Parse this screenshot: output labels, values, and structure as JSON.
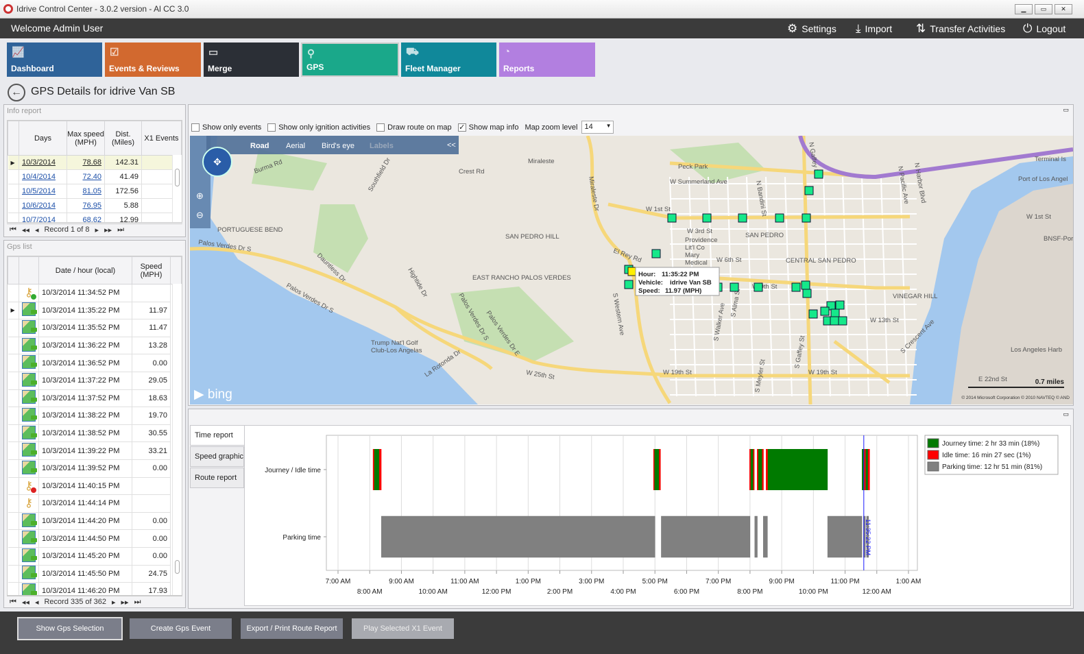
{
  "window": {
    "title": "Idrive Control Center - 3.0.2 version - Al CC 3.0",
    "min": "▁",
    "max": "▭",
    "close": "✕"
  },
  "header": {
    "welcome": "Welcome Admin User",
    "menu": [
      {
        "label": "Settings",
        "icon": "gears-icon"
      },
      {
        "label": "Import",
        "icon": "download-icon"
      },
      {
        "label": "Transfer Activities",
        "icon": "transfer-icon"
      },
      {
        "label": "Logout",
        "icon": "power-icon"
      }
    ]
  },
  "tiles": [
    {
      "label": "Dashboard",
      "color": "#2f6399"
    },
    {
      "label": "Events & Reviews",
      "color": "#d2692f"
    },
    {
      "label": "Merge",
      "color": "#2b2f36"
    },
    {
      "label": "GPS",
      "color": "#1aa88a"
    },
    {
      "label": "Fleet Manager",
      "color": "#10889a"
    },
    {
      "label": "Reports",
      "color": "#b27fe0"
    }
  ],
  "page_title": "GPS Details for idrive Van SB",
  "info_report": {
    "title": "Info report",
    "columns": [
      "Days",
      "Max speed (MPH)",
      "Dist. (Miles)",
      "X1 Events"
    ],
    "rows": [
      [
        "10/3/2014",
        "78.68",
        "142.31",
        ""
      ],
      [
        "10/4/2014",
        "72.40",
        "41.49",
        ""
      ],
      [
        "10/5/2014",
        "81.05",
        "172.56",
        ""
      ],
      [
        "10/6/2014",
        "76.95",
        "5.88",
        ""
      ],
      [
        "10/7/2014",
        "68.62",
        "12.99",
        ""
      ]
    ],
    "record": "Record 1 of 8"
  },
  "gps_list": {
    "title": "Gps list",
    "columns": [
      "Date / hour (local)",
      "Speed (MPH)"
    ],
    "rows": [
      {
        "type": "ignition-on",
        "time": "10/3/2014 11:34:52 PM",
        "speed": ""
      },
      {
        "type": "gps",
        "time": "10/3/2014 11:35:22 PM",
        "speed": "11.97"
      },
      {
        "type": "gps",
        "time": "10/3/2014 11:35:52 PM",
        "speed": "11.47"
      },
      {
        "type": "gps",
        "time": "10/3/2014 11:36:22 PM",
        "speed": "13.28"
      },
      {
        "type": "gps",
        "time": "10/3/2014 11:36:52 PM",
        "speed": "0.00"
      },
      {
        "type": "gps",
        "time": "10/3/2014 11:37:22 PM",
        "speed": "29.05"
      },
      {
        "type": "gps",
        "time": "10/3/2014 11:37:52 PM",
        "speed": "18.63"
      },
      {
        "type": "gps",
        "time": "10/3/2014 11:38:22 PM",
        "speed": "19.70"
      },
      {
        "type": "gps",
        "time": "10/3/2014 11:38:52 PM",
        "speed": "30.55"
      },
      {
        "type": "gps",
        "time": "10/3/2014 11:39:22 PM",
        "speed": "33.21"
      },
      {
        "type": "gps",
        "time": "10/3/2014 11:39:52 PM",
        "speed": "0.00"
      },
      {
        "type": "ignition-off",
        "time": "10/3/2014 11:40:15 PM",
        "speed": ""
      },
      {
        "type": "ignition",
        "time": "10/3/2014 11:44:14 PM",
        "speed": ""
      },
      {
        "type": "gps",
        "time": "10/3/2014 11:44:20 PM",
        "speed": "0.00"
      },
      {
        "type": "gps",
        "time": "10/3/2014 11:44:50 PM",
        "speed": "0.00"
      },
      {
        "type": "gps",
        "time": "10/3/2014 11:45:20 PM",
        "speed": "0.00"
      },
      {
        "type": "gps",
        "time": "10/3/2014 11:45:50 PM",
        "speed": "24.75"
      },
      {
        "type": "gps",
        "time": "10/3/2014 11:46:20 PM",
        "speed": "17.93"
      }
    ],
    "record": "Record 335 of 362"
  },
  "map_toolbar": {
    "show_only_events": {
      "label": "Show only events",
      "checked": false
    },
    "show_only_ignition": {
      "label": "Show only ignition activities",
      "checked": false
    },
    "draw_route": {
      "label": "Draw route on map",
      "checked": false
    },
    "show_map_info": {
      "label": "Show map info",
      "checked": true
    },
    "zoom_label": "Map zoom level",
    "zoom_value": "14"
  },
  "map": {
    "modes": [
      "Road",
      "Aerial",
      "Bird's eye",
      "Labels"
    ],
    "collapse": "<<",
    "brand": "bing",
    "scale": "0.7 miles",
    "attribution": "© 2014 Microsoft Corporation  © 2010 NAVTEQ  © AND",
    "labels": [
      "Burma Rd",
      "Crest Rd",
      "Miraleste",
      "Miraleste Dr",
      "Peck Park",
      "W Summerland Ave",
      "N Gaffey St",
      "N Pacific Ave",
      "N Harbor Blvd",
      "Terminal Is",
      "Port of Los Angel",
      "PORTUGUESE BEND",
      "SAN PEDRO HILL",
      "W 1st St",
      "N Bandini St",
      "W 3rd St",
      "SAN PEDRO",
      "W 1st St",
      "Palos Verdes Dr S",
      "Dauntless Dr",
      "Hightide Dr",
      "EAST RANCHO PALOS VERDES",
      "El Rey Rd",
      "Providence Lit'l Co Mary Medical",
      "W 6th St",
      "CENTRAL SAN PEDRO",
      "W 9th St",
      "VINEGAR HILL",
      "W 13th St",
      "Palos Verdes Dr S",
      "Palos Verdes Dr E",
      "Trump Nat'l Golf Club-Los Angelas",
      "W 25th St",
      "S Western Ave",
      "S Walker Ave",
      "S Alma St",
      "S Meyler St",
      "S Gaffey St",
      "W 19th St",
      "W 19th St",
      "S Crescent Ave",
      "E 22nd St",
      "Los Angeles Harb",
      "BNSF-Port",
      "Southfield Dr",
      "La Rotonda Dr",
      "Palos Verdes Dr S"
    ],
    "tooltip": {
      "hour_label": "Hour:",
      "hour": "11:35:22 PM",
      "vehicle_label": "Vehicle:",
      "vehicle": "idrive Van SB",
      "speed_label": "Speed:",
      "speed": "11.97 (MPH)"
    }
  },
  "tabs": [
    "Time report",
    "Speed graphic",
    "Route report"
  ],
  "chart_data": {
    "type": "timeline",
    "categories": [
      "Journey / Idle time",
      "Parking time"
    ],
    "x_ticks_top": [
      "7:00 AM",
      "9:00 AM",
      "11:00 AM",
      "1:00 PM",
      "3:00 PM",
      "5:00 PM",
      "7:00 PM",
      "9:00 PM",
      "11:00 PM",
      "1:00 AM"
    ],
    "x_ticks_bottom": [
      "8:00 AM",
      "10:00 AM",
      "12:00 PM",
      "2:00 PM",
      "4:00 PM",
      "6:00 PM",
      "8:00 PM",
      "10:00 PM",
      "12:00 AM"
    ],
    "x_range_hours": [
      7,
      25
    ],
    "grid": true,
    "legend_position": "right",
    "series": [
      {
        "name": "Journey time: 2 hr 33 min (18%)",
        "color": "#007a00",
        "row": 0,
        "intervals": [
          [
            8.12,
            8.36
          ],
          [
            16.97,
            17.18
          ],
          [
            20.0,
            20.12
          ],
          [
            20.25,
            20.42
          ],
          [
            20.55,
            22.45
          ],
          [
            23.53,
            23.62
          ],
          [
            23.64,
            23.76
          ]
        ]
      },
      {
        "name": "Idle time: 16 min 27 sec (1%)",
        "color": "#ff0000",
        "row": 0,
        "intervals": [
          [
            8.1,
            8.14
          ],
          [
            8.3,
            8.37
          ],
          [
            16.95,
            16.98
          ],
          [
            17.13,
            17.18
          ],
          [
            19.98,
            20.02
          ],
          [
            20.1,
            20.14
          ],
          [
            20.22,
            20.26
          ],
          [
            20.38,
            20.43
          ],
          [
            20.5,
            20.56
          ],
          [
            23.6,
            23.65
          ],
          [
            23.72,
            23.78
          ]
        ]
      },
      {
        "name": "Parking time: 12 hr 51 min (81%)",
        "color": "#808080",
        "row": 1,
        "intervals": [
          [
            8.37,
            17.0
          ],
          [
            17.2,
            20.0
          ],
          [
            20.15,
            20.23
          ],
          [
            20.42,
            20.55
          ],
          [
            22.45,
            23.53
          ],
          [
            23.58,
            23.64
          ],
          [
            23.68,
            23.74
          ]
        ]
      }
    ],
    "cursor": {
      "time": 23.59,
      "label": "11:35:22 PM"
    }
  },
  "footer": {
    "buttons": [
      "Show Gps Selection",
      "Create Gps Event",
      "Export / Print Route Report",
      "Play Selected X1 Event"
    ]
  }
}
